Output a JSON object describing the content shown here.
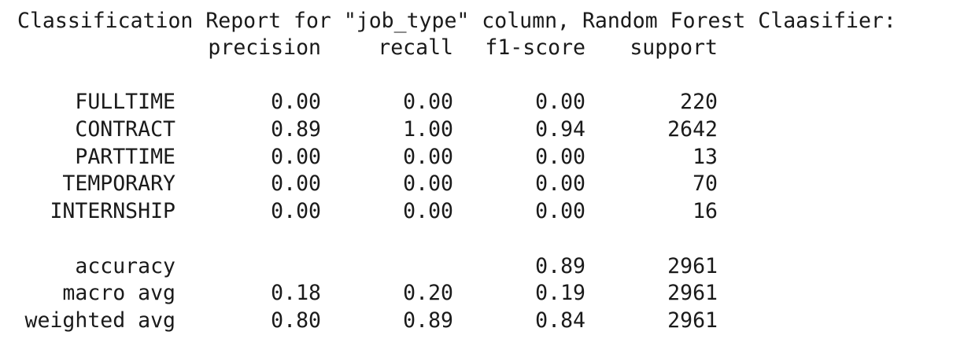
{
  "report": {
    "title": "Classification Report for \"job_type\" column, Random Forest Claasifier:",
    "headers": {
      "precision": "precision",
      "recall": "recall",
      "f1": "f1-score",
      "support": "support"
    },
    "classes": [
      {
        "label": "FULLTIME",
        "precision": "0.00",
        "recall": "0.00",
        "f1": "0.00",
        "support": "220"
      },
      {
        "label": "CONTRACT",
        "precision": "0.89",
        "recall": "1.00",
        "f1": "0.94",
        "support": "2642"
      },
      {
        "label": "PARTTIME",
        "precision": "0.00",
        "recall": "0.00",
        "f1": "0.00",
        "support": "13"
      },
      {
        "label": "TEMPORARY",
        "precision": "0.00",
        "recall": "0.00",
        "f1": "0.00",
        "support": "70"
      },
      {
        "label": "INTERNSHIP",
        "precision": "0.00",
        "recall": "0.00",
        "f1": "0.00",
        "support": "16"
      }
    ],
    "summary": [
      {
        "label": "accuracy",
        "precision": "",
        "recall": "",
        "f1": "0.89",
        "support": "2961"
      },
      {
        "label": "macro avg",
        "precision": "0.18",
        "recall": "0.20",
        "f1": "0.19",
        "support": "2961"
      },
      {
        "label": "weighted avg",
        "precision": "0.80",
        "recall": "0.89",
        "f1": "0.84",
        "support": "2961"
      }
    ]
  }
}
